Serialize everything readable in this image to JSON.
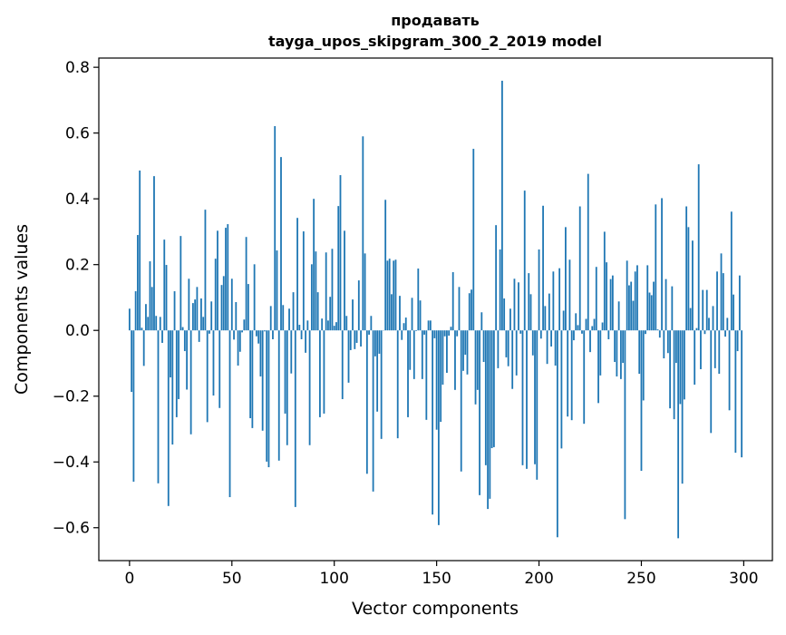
{
  "chart_data": {
    "type": "bar",
    "title": "продавать",
    "subtitle": "tayga_upos_skipgram_300_2_2019 model",
    "xlabel": "Vector components",
    "ylabel": "Components values",
    "xlim": [
      -15,
      314
    ],
    "ylim": [
      -0.7,
      0.828
    ],
    "xticks": [
      0,
      50,
      100,
      150,
      200,
      250,
      300
    ],
    "xtick_labels": [
      "0",
      "50",
      "100",
      "150",
      "200",
      "250",
      "300"
    ],
    "yticks": [
      -0.6,
      -0.4,
      -0.2,
      0.0,
      0.2,
      0.4,
      0.6,
      0.8
    ],
    "ytick_labels": [
      "−0.6",
      "−0.4",
      "−0.2",
      "0.0",
      "0.2",
      "0.4",
      "0.6",
      "0.8"
    ],
    "grid": false,
    "bar_color": "#1f77b4",
    "values": [
      0.066,
      -0.187,
      -0.46,
      0.119,
      0.29,
      0.486,
      0.008,
      -0.108,
      0.08,
      0.041,
      0.21,
      0.132,
      0.469,
      0.044,
      -0.465,
      0.041,
      -0.038,
      0.276,
      0.199,
      -0.534,
      -0.143,
      -0.347,
      0.119,
      -0.264,
      -0.209,
      0.287,
      0.01,
      -0.063,
      -0.18,
      0.157,
      -0.316,
      0.083,
      0.094,
      0.132,
      -0.035,
      0.097,
      0.041,
      0.367,
      -0.279,
      -0.01,
      0.088,
      -0.198,
      0.218,
      0.303,
      -0.236,
      0.138,
      0.165,
      0.312,
      0.323,
      -0.507,
      0.157,
      -0.028,
      0.086,
      -0.107,
      -0.065,
      -0.006,
      0.033,
      0.284,
      0.141,
      -0.267,
      -0.297,
      0.201,
      -0.018,
      -0.04,
      -0.14,
      -0.305,
      -0.003,
      -0.399,
      -0.416,
      0.074,
      -0.027,
      0.621,
      0.243,
      -0.396,
      0.527,
      0.077,
      -0.253,
      -0.349,
      0.066,
      -0.131,
      0.116,
      -0.537,
      0.342,
      0.017,
      -0.027,
      0.301,
      -0.068,
      0.03,
      -0.349,
      0.201,
      0.4,
      0.24,
      0.116,
      -0.264,
      0.036,
      -0.253,
      0.237,
      0.03,
      0.102,
      0.248,
      0.014,
      0.025,
      0.378,
      0.472,
      -0.209,
      0.303,
      0.044,
      -0.159,
      -0.06,
      0.094,
      -0.057,
      -0.038,
      0.152,
      -0.049,
      0.59,
      0.234,
      -0.436,
      -0.013,
      0.044,
      -0.49,
      -0.079,
      -0.247,
      -0.071,
      -0.33,
      0.0,
      0.397,
      0.212,
      0.218,
      0.11,
      0.212,
      0.215,
      -0.328,
      0.105,
      -0.029,
      0.022,
      0.039,
      -0.264,
      -0.12,
      0.099,
      -0.148,
      -0.002,
      0.188,
      0.091,
      -0.148,
      -0.013,
      -0.272,
      0.03,
      0.03,
      -0.56,
      -0.024,
      -0.302,
      -0.592,
      -0.278,
      -0.165,
      -0.018,
      -0.129,
      -0.016,
      0.011,
      0.177,
      -0.181,
      -0.018,
      0.132,
      -0.429,
      -0.123,
      -0.074,
      -0.134,
      0.113,
      0.124,
      0.552,
      -0.225,
      -0.181,
      -0.501,
      0.055,
      -0.096,
      -0.41,
      -0.543,
      -0.512,
      -0.358,
      -0.355,
      0.32,
      -0.115,
      0.246,
      0.759,
      0.097,
      -0.082,
      -0.109,
      0.066,
      -0.178,
      0.157,
      -0.137,
      0.146,
      -0.01,
      -0.41,
      0.425,
      -0.421,
      0.174,
      0.11,
      -0.076,
      -0.407,
      -0.454,
      0.246,
      -0.025,
      0.379,
      0.074,
      -0.102,
      0.112,
      -0.049,
      0.179,
      -0.107,
      -0.629,
      0.189,
      -0.359,
      0.06,
      0.314,
      -0.262,
      0.215,
      -0.273,
      -0.03,
      0.052,
      0.016,
      0.377,
      -0.01,
      -0.284,
      0.035,
      0.476,
      -0.066,
      0.013,
      0.035,
      0.193,
      -0.221,
      -0.137,
      0.024,
      0.3,
      0.207,
      -0.027,
      0.156,
      0.167,
      -0.096,
      -0.14,
      0.088,
      -0.148,
      -0.099,
      -0.574,
      0.212,
      0.137,
      0.148,
      0.09,
      0.179,
      0.198,
      -0.132,
      -0.427,
      -0.213,
      -0.011,
      0.198,
      0.115,
      0.107,
      0.148,
      0.383,
      0.003,
      -0.022,
      0.402,
      -0.085,
      0.156,
      -0.069,
      -0.237,
      0.134,
      -0.27,
      -0.099,
      -0.632,
      -0.224,
      -0.466,
      -0.21,
      0.377,
      0.314,
      0.068,
      0.273,
      -0.165,
      0.007,
      0.505,
      -0.118,
      0.123,
      -0.011,
      0.123,
      0.038,
      -0.312,
      0.074,
      -0.115,
      0.179,
      -0.132,
      0.234,
      0.174,
      -0.019,
      0.038,
      -0.243,
      0.361,
      0.109,
      -0.372,
      -0.063,
      0.167,
      -0.386
    ]
  }
}
